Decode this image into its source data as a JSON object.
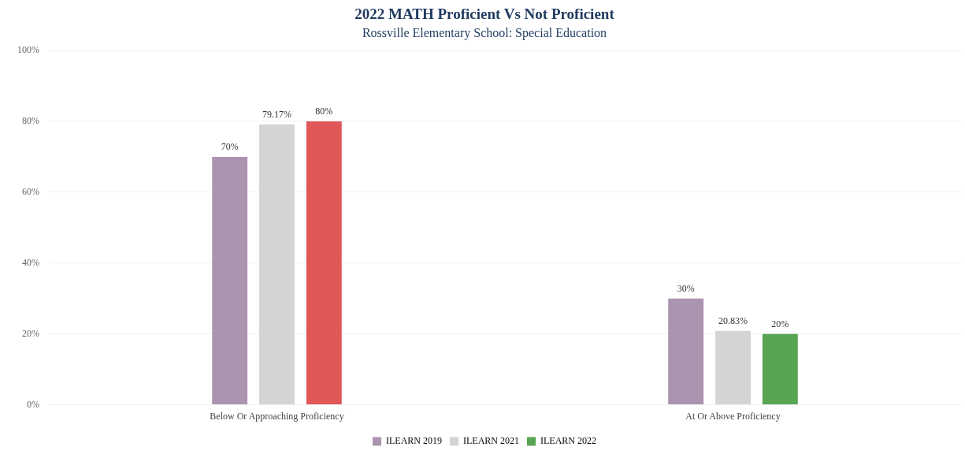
{
  "chart_data": {
    "type": "bar",
    "title": "2022 MATH Proficient Vs Not Proficient",
    "subtitle": "Rossville Elementary School: Special Education",
    "categories": [
      "Below Or Approaching Proficiency",
      "At Or Above Proficiency"
    ],
    "series": [
      {
        "name": "ILEARN 2019",
        "color": "#ab94b0",
        "values": [
          70,
          30
        ],
        "value_labels": [
          "70%",
          "30%"
        ]
      },
      {
        "name": "ILEARN 2021",
        "color": "#d4d4d4",
        "values": [
          79.17,
          20.83
        ],
        "value_labels": [
          "79.17%",
          "20.83%"
        ]
      },
      {
        "name": "ILEARN 2022",
        "color": "#57a552",
        "colors": [
          "#e05757",
          "#57a552"
        ],
        "values": [
          80,
          20
        ],
        "value_labels": [
          "80%",
          "20%"
        ]
      }
    ],
    "ylim": [
      0,
      100
    ],
    "yticks": [
      {
        "value": 0,
        "label": "0%"
      },
      {
        "value": 20,
        "label": "20%"
      },
      {
        "value": 40,
        "label": "40%"
      },
      {
        "value": 60,
        "label": "60%"
      },
      {
        "value": 80,
        "label": "80%"
      },
      {
        "value": 100,
        "label": "100%"
      }
    ],
    "grid": "y",
    "legend": "bottom"
  }
}
